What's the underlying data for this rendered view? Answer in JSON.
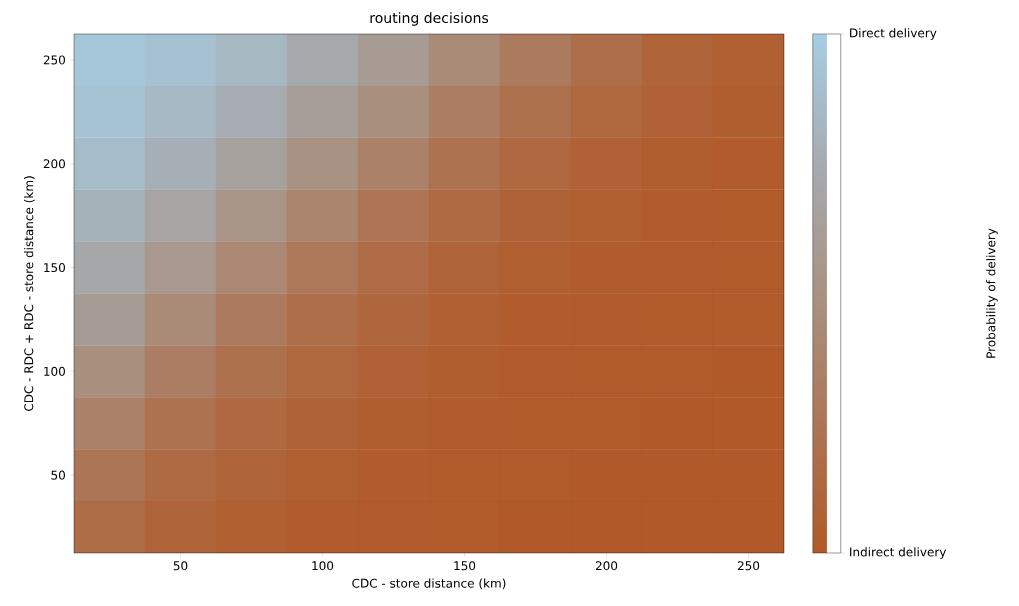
{
  "chart_data": {
    "type": "heatmap",
    "title": "routing decisions",
    "xlabel": "CDC - store distance (km)",
    "ylabel": "CDC - RDC + RDC - store distance (km)",
    "clabel": "Probability of delivery",
    "categories": [
      null,
      "50",
      null,
      "100",
      null,
      "150",
      null,
      "200",
      null,
      "250"
    ],
    "y_categories": [
      "250",
      null,
      "200",
      null,
      "150",
      null,
      "100",
      null,
      "50",
      null
    ],
    "cells": [
      [
        0.95,
        0.91,
        0.84,
        0.73,
        0.59,
        0.44,
        0.29,
        0.18,
        0.1,
        0.06
      ],
      [
        0.92,
        0.85,
        0.76,
        0.62,
        0.47,
        0.32,
        0.2,
        0.12,
        0.07,
        0.04
      ],
      [
        0.87,
        0.78,
        0.65,
        0.5,
        0.35,
        0.22,
        0.13,
        0.07,
        0.04,
        0.02
      ],
      [
        0.8,
        0.68,
        0.53,
        0.38,
        0.24,
        0.15,
        0.08,
        0.05,
        0.03,
        0.01
      ],
      [
        0.71,
        0.56,
        0.41,
        0.27,
        0.16,
        0.09,
        0.05,
        0.03,
        0.02,
        0.01
      ],
      [
        0.6,
        0.44,
        0.3,
        0.18,
        0.11,
        0.06,
        0.03,
        0.02,
        0.01,
        0.01
      ],
      [
        0.47,
        0.32,
        0.2,
        0.12,
        0.07,
        0.04,
        0.02,
        0.01,
        0.01,
        0
      ],
      [
        0.35,
        0.22,
        0.13,
        0.08,
        0.04,
        0.02,
        0.01,
        0.01,
        0,
        0
      ],
      [
        0.25,
        0.15,
        0.09,
        0.05,
        0.03,
        0.01,
        0.01,
        0,
        0,
        0
      ],
      [
        0.17,
        0.1,
        0.05,
        0.03,
        0.02,
        0.01,
        0,
        0,
        0,
        0
      ]
    ],
    "clim": [
      0,
      1
    ],
    "cticks": [
      {
        "value": 0,
        "label": "Indirect delivery"
      },
      {
        "value": 1,
        "label": "Direct delivery"
      }
    ]
  }
}
